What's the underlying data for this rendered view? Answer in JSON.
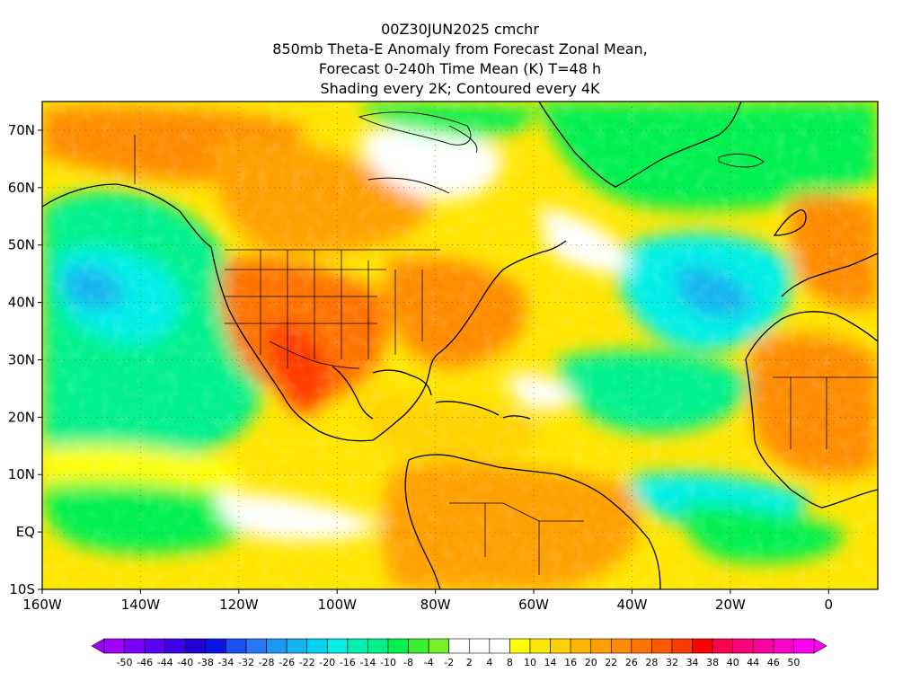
{
  "title": {
    "line1": "00Z30JUN2025 cmchr",
    "line2": "850mb Theta-E Anomaly from Forecast Zonal Mean,",
    "line3": "Forecast 0-240h Time Mean (K) T=48 h",
    "line4": "Shading every 2K; Contoured every 4K"
  },
  "map": {
    "lat_range": [
      -10,
      75
    ],
    "lon_range": [
      -160,
      10
    ],
    "lat_ticks": [
      "70N",
      "60N",
      "50N",
      "40N",
      "30N",
      "20N",
      "10N",
      "EQ",
      "10S"
    ],
    "lat_tick_values": [
      70,
      60,
      50,
      40,
      30,
      20,
      10,
      0,
      -10
    ],
    "lon_ticks": [
      "160W",
      "140W",
      "120W",
      "100W",
      "80W",
      "60W",
      "40W",
      "20W",
      "0"
    ],
    "lon_tick_values": [
      -160,
      -140,
      -120,
      -100,
      -80,
      -60,
      -40,
      -20,
      0
    ]
  },
  "colorbar": {
    "labels": [
      "-50",
      "-46",
      "-44",
      "-40",
      "-38",
      "-34",
      "-32",
      "-28",
      "-26",
      "-22",
      "-20",
      "-16",
      "-14",
      "-10",
      "-8",
      "-4",
      "-2",
      "2",
      "4",
      "8",
      "10",
      "14",
      "16",
      "20",
      "22",
      "26",
      "28",
      "32",
      "34",
      "38",
      "40",
      "44",
      "46",
      "50"
    ],
    "colors": [
      "#a000ff",
      "#7d00ff",
      "#5a00f5",
      "#3c00e6",
      "#1e00d7",
      "#0a14e6",
      "#1e50f0",
      "#2878f5",
      "#1e96f5",
      "#14b4f0",
      "#00d2f0",
      "#00f0e6",
      "#00f0b4",
      "#00f08c",
      "#00f050",
      "#3cf032",
      "#78f028",
      "#ffffff",
      "#ffffff",
      "#ffffff",
      "#ffff00",
      "#ffe600",
      "#ffd200",
      "#ffb400",
      "#ffa000",
      "#ff8c00",
      "#ff7300",
      "#ff5a00",
      "#ff3c00",
      "#ff0000",
      "#ff0050",
      "#ff0078",
      "#ff00a0",
      "#ff00c8",
      "#ff00f0"
    ],
    "end_left_color": "#a000ff",
    "end_right_color": "#ff00f0"
  }
}
